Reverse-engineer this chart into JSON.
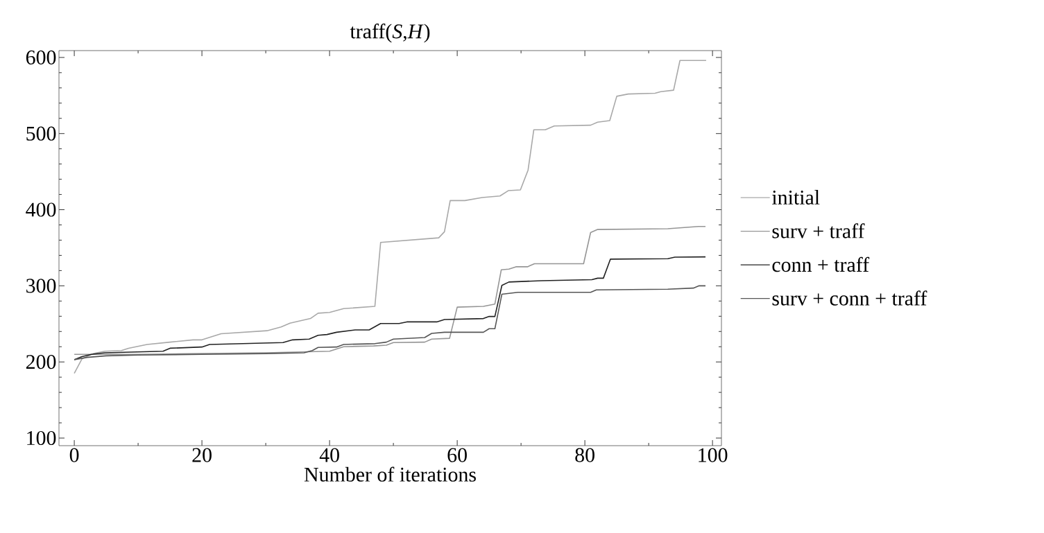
{
  "chart_data": {
    "type": "line",
    "title": "traff(*S*,*H*)",
    "xlabel": "Number of iterations",
    "xlim": [
      -2.4,
      101.4
    ],
    "ylim": [
      90,
      609
    ],
    "xticks": [
      0,
      20,
      40,
      60,
      80,
      100
    ],
    "yticks": [
      100,
      200,
      300,
      400,
      500,
      600
    ],
    "legend": "right",
    "marker": "none",
    "line_style": "solid",
    "grid": false,
    "series": [
      {
        "name": "initial",
        "color": "#a8a8a8",
        "x": [
          0,
          1.2,
          3,
          4.8,
          7.4,
          8.5,
          11.4,
          15,
          18.6,
          20,
          23,
          30.2,
          32.4,
          33.8,
          37,
          38.2,
          40,
          42.2,
          47.1,
          48,
          57.1,
          58,
          58.9,
          61.2,
          63.9,
          66.7,
          68,
          69.9,
          71.1,
          72,
          73.8,
          75.2,
          80.9,
          82,
          83.9,
          85,
          86.8,
          91,
          91.9,
          93.9,
          94.9,
          99
        ],
        "values": [
          185,
          204,
          211,
          214,
          215,
          218,
          223,
          226,
          229,
          229,
          237,
          241,
          246,
          251,
          257,
          264,
          265,
          270,
          273,
          357,
          363,
          371,
          412,
          412,
          416,
          418,
          425,
          426,
          452,
          505,
          505,
          510,
          511,
          515,
          517,
          549,
          552,
          553,
          555,
          557,
          596,
          596
        ]
      },
      {
        "name": "surv + traff",
        "color": "#959595",
        "x": [
          0,
          10,
          20,
          30,
          40,
          42.2,
          46.9,
          48.9,
          50,
          54.9,
          56,
          58.8,
          60,
          64.1,
          65.9,
          66.9,
          68.1,
          69.2,
          71,
          72.1,
          79.8,
          80.9,
          82,
          93,
          97.8,
          98.9
        ],
        "values": [
          210,
          210,
          211,
          212,
          214,
          220,
          221,
          222,
          225.5,
          226,
          230,
          231,
          272,
          273,
          276,
          321,
          322,
          325,
          325,
          329,
          329,
          370,
          374,
          375,
          378,
          378
        ]
      },
      {
        "name": "conn + traff",
        "color": "#222222",
        "x": [
          0,
          1.2,
          2.7,
          4.8,
          13.9,
          15,
          20,
          21.2,
          32.7,
          34.2,
          36.8,
          38.2,
          39.6,
          41.1,
          44,
          46.2,
          48,
          50.9,
          52.1,
          56.8,
          58,
          64.1,
          65,
          65.9,
          67,
          68.1,
          73.2,
          81.1,
          82,
          82.9,
          84,
          93,
          94.1,
          98.9
        ],
        "values": [
          203,
          207,
          210,
          212,
          214,
          218,
          219.6,
          223,
          225.5,
          229,
          230,
          235,
          236,
          239,
          242,
          242,
          250.5,
          250.5,
          252.6,
          252.6,
          255.7,
          257,
          259.7,
          259.7,
          300.6,
          305,
          306.7,
          308,
          310,
          310,
          335,
          335.6,
          337.7,
          338
        ]
      },
      {
        "name": "surv + conn + traff",
        "color": "#555555",
        "x": [
          0,
          2,
          5,
          10,
          20,
          30,
          36,
          37.3,
          38.2,
          41.1,
          42.2,
          47.1,
          48.9,
          50,
          54.9,
          56,
          58,
          64.1,
          65,
          65.9,
          67,
          69.5,
          80.9,
          81.8,
          93,
          97,
          97.9,
          98.9
        ],
        "values": [
          203,
          206,
          208,
          209,
          210,
          211,
          212,
          215,
          219,
          219.6,
          223,
          224,
          226,
          230,
          232,
          237.5,
          239,
          239,
          243.6,
          243.6,
          289,
          291.5,
          291.5,
          294.6,
          295.5,
          297,
          300,
          300
        ]
      }
    ]
  }
}
